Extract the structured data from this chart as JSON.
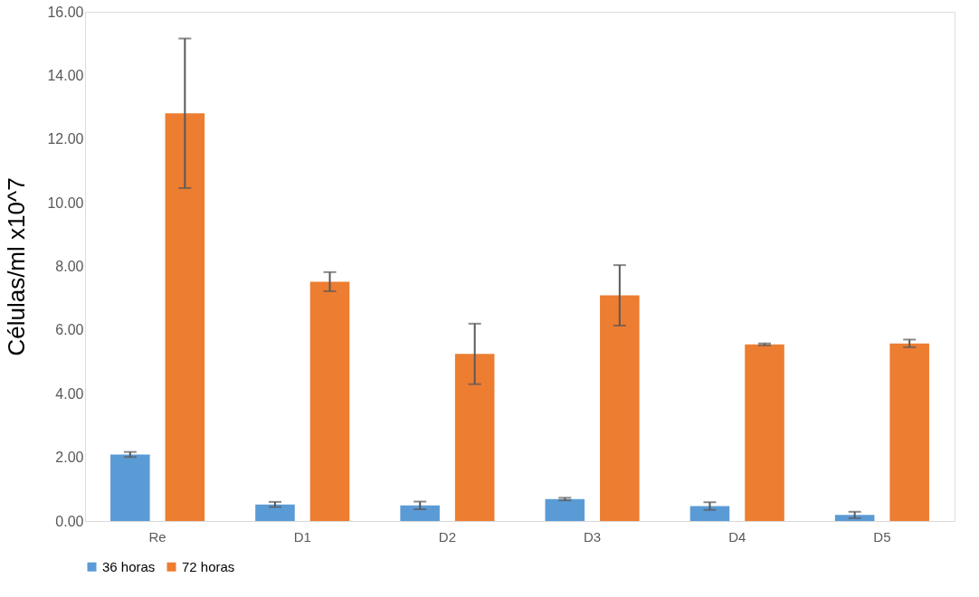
{
  "chart_data": {
    "type": "bar",
    "ylabel": "Células/ml x10^7",
    "categories": [
      "Re",
      "D1",
      "D2",
      "D3",
      "D4",
      "D5"
    ],
    "series": [
      {
        "name": "36 horas",
        "color": "#5b9bd5",
        "values": [
          2.09,
          0.52,
          0.49,
          0.69,
          0.47,
          0.19
        ],
        "errors": [
          0.08,
          0.08,
          0.12,
          0.04,
          0.12,
          0.1
        ]
      },
      {
        "name": "72 horas",
        "color": "#ed7d31",
        "values": [
          12.81,
          7.52,
          5.25,
          7.09,
          5.55,
          5.58
        ],
        "errors": [
          2.35,
          0.3,
          0.95,
          0.95,
          0.03,
          0.12
        ]
      }
    ],
    "ylim": [
      0,
      16
    ],
    "yticks": [
      {
        "value": 0,
        "label": "0.00"
      },
      {
        "value": 2,
        "label": "2.00"
      },
      {
        "value": 4,
        "label": "4.00"
      },
      {
        "value": 6,
        "label": "6.00"
      },
      {
        "value": 8,
        "label": "8.00"
      },
      {
        "value": 10,
        "label": "10.00"
      },
      {
        "value": 12,
        "label": "12.00"
      },
      {
        "value": 14,
        "label": "14.00"
      },
      {
        "value": 16,
        "label": "16.00"
      }
    ],
    "grid": false,
    "legend": "bottom"
  }
}
